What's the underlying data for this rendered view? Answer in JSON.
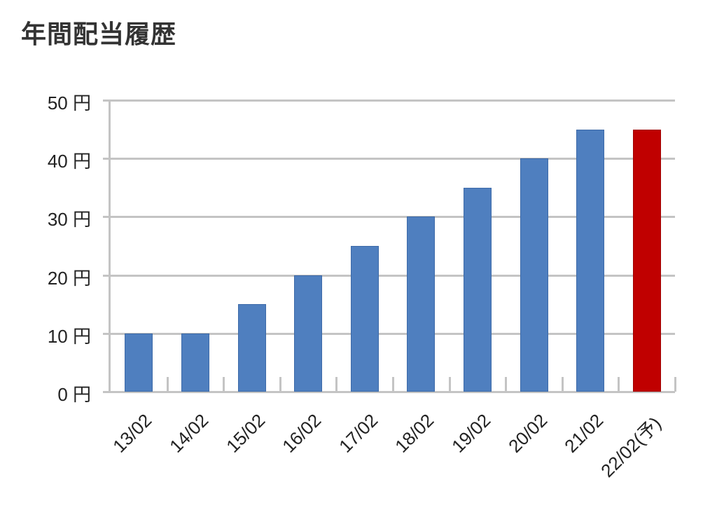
{
  "title": "年間配当履歴",
  "colors": {
    "actual": "#4f7fbf",
    "forecast": "#c00000",
    "grid": "#c4c4c4"
  },
  "y_ticks": [
    "0 円",
    "10 円",
    "20 円",
    "30 円",
    "40 円",
    "50 円"
  ],
  "chart_data": {
    "type": "bar",
    "title": "年間配当履歴",
    "xlabel": "",
    "ylabel": "",
    "categories": [
      "13/02",
      "14/02",
      "15/02",
      "16/02",
      "17/02",
      "18/02",
      "19/02",
      "20/02",
      "21/02",
      "22/02(予)"
    ],
    "values": [
      10,
      10,
      15,
      20,
      25,
      30,
      35,
      40,
      45,
      45
    ],
    "unit": "円",
    "forecast_index": 9,
    "bar_colors": [
      "#4f7fbf",
      "#4f7fbf",
      "#4f7fbf",
      "#4f7fbf",
      "#4f7fbf",
      "#4f7fbf",
      "#4f7fbf",
      "#4f7fbf",
      "#4f7fbf",
      "#c00000"
    ],
    "ylim": [
      0,
      50
    ],
    "y_tick_values": [
      0,
      10,
      20,
      30,
      40,
      50
    ],
    "grid": true,
    "legend": null
  }
}
